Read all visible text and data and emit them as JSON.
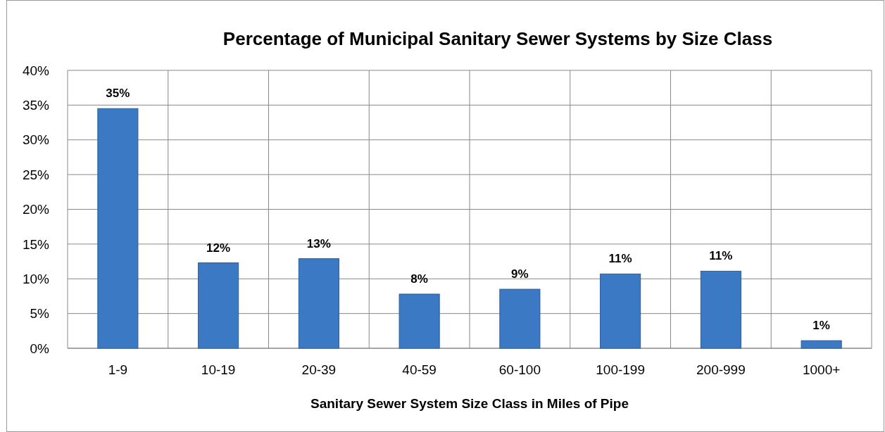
{
  "chart_data": {
    "type": "bar",
    "title": "Percentage of Municipal Sanitary Sewer Systems by Size Class",
    "xlabel": "Sanitary Sewer System Size Class in Miles of Pipe",
    "categories": [
      "1-9",
      "10-19",
      "20-39",
      "40-59",
      "60-100",
      "100-199",
      "200-999",
      "1000+"
    ],
    "values": [
      34.5,
      12.3,
      12.9,
      7.8,
      8.5,
      10.7,
      11.1,
      1.1
    ],
    "value_labels": [
      "35%",
      "12%",
      "13%",
      "8%",
      "9%",
      "11%",
      "11%",
      "1%"
    ],
    "color": "#3c79c4",
    "ylim": [
      0,
      40
    ],
    "yticks": [
      {
        "value": 0,
        "label": "0%"
      },
      {
        "value": 5,
        "label": "5%"
      },
      {
        "value": 10,
        "label": "10%"
      },
      {
        "value": 15,
        "label": "15%"
      },
      {
        "value": 20,
        "label": "20%"
      },
      {
        "value": 25,
        "label": "25%"
      },
      {
        "value": 30,
        "label": "30%"
      },
      {
        "value": 35,
        "label": "35%"
      },
      {
        "value": 40,
        "label": "40%"
      }
    ],
    "grid": true
  }
}
